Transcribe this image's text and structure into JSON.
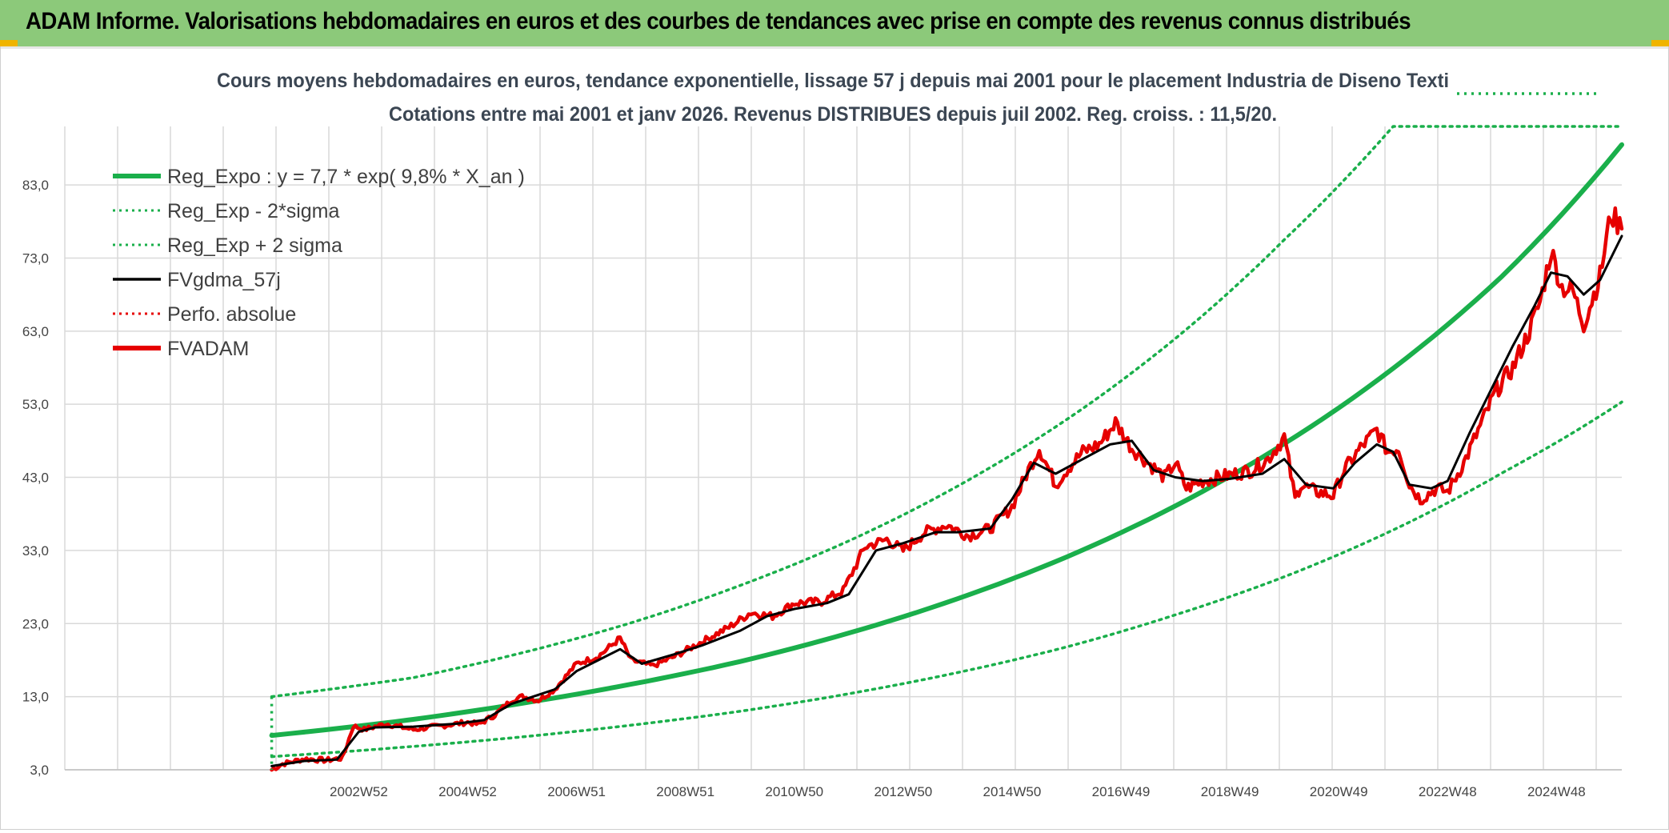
{
  "header": {
    "title": "ADAM Informe. Valorisations hebdomadaires en euros et des courbes de tendances avec prise en compte des revenus connus distribués"
  },
  "colors": {
    "header_bg": "#8cc97a",
    "reg_expo": "#1aaf4b",
    "sigma": "#1aaf4b",
    "fvgdma": "#000000",
    "perfo": "#e60000",
    "fvadam": "#e60000",
    "grid": "#d9d9d9"
  },
  "chart_data": {
    "type": "line",
    "title": "Cours moyens hebdomadaires en euros, tendance exponentielle, lissage 57 j depuis mai 2001 pour le placement Industria de Diseno Texti",
    "subtitle": "Cotations entre mai 2001 et janv 2026. Revenus DISTRIBUES depuis juil 2002. Reg. croiss. : 11,5/20.",
    "xlabel": "",
    "ylabel": "",
    "xlim": [
      1997.6,
      2026.2
    ],
    "ylim": [
      3,
      91
    ],
    "y_ticks": [
      "3,0",
      "13,0",
      "23,0",
      "33,0",
      "43,0",
      "53,0",
      "63,0",
      "73,0",
      "83,0"
    ],
    "y_tick_values": [
      3,
      13,
      23,
      33,
      43,
      53,
      63,
      73,
      83
    ],
    "x_ticks": [
      "2002W52",
      "2004W52",
      "2006W51",
      "2008W51",
      "2010W50",
      "2012W50",
      "2014W50",
      "2016W49",
      "2018W49",
      "2020W49",
      "2022W48",
      "2024W48"
    ],
    "x_tick_values": [
      2003.0,
      2005.0,
      2007.0,
      2009.0,
      2011.0,
      2013.0,
      2015.0,
      2017.0,
      2019.0,
      2021.0,
      2023.0,
      2025.0
    ],
    "legend": [
      {
        "key": "reg_expo",
        "label": "Reg_Expo : y = 7,7 * exp( 9,8% *  X_an )",
        "style": "solid-thick",
        "color": "#1aaf4b"
      },
      {
        "key": "reg_minus",
        "label": "Reg_Exp - 2*sigma",
        "style": "dotted",
        "color": "#1aaf4b"
      },
      {
        "key": "reg_plus",
        "label": "Reg_Exp + 2 sigma",
        "style": "dotted",
        "color": "#1aaf4b"
      },
      {
        "key": "fvgdma",
        "label": "FVgdma_57j",
        "style": "solid",
        "color": "#000000"
      },
      {
        "key": "perfo",
        "label": "Perfo. absolue",
        "style": "dotted",
        "color": "#e60000"
      },
      {
        "key": "fvadam",
        "label": "FVADAM",
        "style": "solid-thick",
        "color": "#e60000"
      }
    ],
    "series": [
      {
        "name": "Reg_Expo",
        "x": [
          2001.4,
          2004,
          2006,
          2008,
          2010,
          2012,
          2014,
          2016,
          2018,
          2020,
          2022,
          2024,
          2026.2
        ],
        "values": [
          7.7,
          9.9,
          12.1,
          14.7,
          17.8,
          21.7,
          26.4,
          32.1,
          39.1,
          47.6,
          57.9,
          70.5,
          88.5
        ]
      },
      {
        "name": "Reg_Exp - 2*sigma",
        "x": [
          2001.4,
          2004,
          2006,
          2008,
          2010,
          2012,
          2014,
          2016,
          2018,
          2020,
          2022,
          2024,
          2026.2
        ],
        "values": [
          4.8,
          6.2,
          7.5,
          9.1,
          11.0,
          13.4,
          16.3,
          19.8,
          24.2,
          29.4,
          35.8,
          43.6,
          53.3
        ]
      },
      {
        "name": "Reg_Exp + 2 sigma",
        "x": [
          2001.4,
          2004,
          2006,
          2008,
          2010,
          2012,
          2014,
          2016,
          2018,
          2020,
          2022,
          2024,
          2026.2
        ],
        "values": [
          13.0,
          15.6,
          19.0,
          23.1,
          28.2,
          34.3,
          41.8,
          50.9,
          62.0,
          75.5,
          91.0,
          91.0,
          91.0
        ]
      },
      {
        "name": "FVgdma_57j",
        "x": [
          2001.4,
          2002.0,
          2002.6,
          2003.0,
          2003.3,
          2004.0,
          2004.8,
          2005.3,
          2005.8,
          2006.2,
          2006.6,
          2007.0,
          2007.4,
          2007.8,
          2008.2,
          2008.8,
          2009.3,
          2010.0,
          2010.5,
          2011.0,
          2011.6,
          2012.0,
          2012.5,
          2013.0,
          2013.6,
          2014.0,
          2014.6,
          2015.0,
          2015.4,
          2015.8,
          2016.3,
          2016.8,
          2017.2,
          2017.6,
          2018.0,
          2018.5,
          2019.0,
          2019.6,
          2020.0,
          2020.4,
          2020.9,
          2021.3,
          2021.7,
          2022.0,
          2022.3,
          2022.7,
          2023.0,
          2023.4,
          2023.8,
          2024.2,
          2024.6,
          2024.9,
          2025.2,
          2025.5,
          2025.8,
          2026.2
        ],
        "values": [
          3.5,
          4.2,
          4.4,
          8.2,
          8.8,
          8.9,
          9.3,
          9.8,
          12.0,
          13.0,
          14.0,
          16.5,
          18.0,
          19.5,
          17.5,
          18.8,
          20.0,
          22.0,
          24.0,
          25.0,
          25.8,
          27.0,
          33.0,
          34.0,
          35.5,
          35.5,
          36.0,
          40.0,
          45.0,
          43.5,
          45.5,
          47.5,
          48.0,
          44.0,
          43.0,
          42.5,
          42.8,
          43.5,
          45.5,
          42.0,
          41.5,
          45.0,
          47.5,
          46.5,
          42.0,
          41.5,
          42.5,
          49.0,
          55.0,
          61.0,
          66.5,
          71.0,
          70.5,
          68.0,
          70.0,
          76.0
        ]
      },
      {
        "name": "FVADAM",
        "x": [
          2001.4,
          2001.6,
          2002.0,
          2002.4,
          2002.7,
          2002.9,
          2003.1,
          2003.5,
          2004.0,
          2004.5,
          2005.0,
          2005.2,
          2005.5,
          2005.8,
          2006.0,
          2006.3,
          2006.6,
          2007.0,
          2007.4,
          2007.8,
          2008.0,
          2008.4,
          2008.8,
          2009.3,
          2009.8,
          2010.2,
          2010.6,
          2011.0,
          2011.5,
          2011.9,
          2012.3,
          2012.7,
          2013.0,
          2013.4,
          2013.8,
          2014.2,
          2014.6,
          2015.0,
          2015.3,
          2015.5,
          2015.8,
          2016.0,
          2016.3,
          2016.6,
          2016.9,
          2017.2,
          2017.5,
          2017.8,
          2018.0,
          2018.2,
          2018.5,
          2018.8,
          2019.1,
          2019.4,
          2019.7,
          2020.0,
          2020.2,
          2020.3,
          2020.6,
          2020.9,
          2021.1,
          2021.4,
          2021.7,
          2021.9,
          2022.1,
          2022.3,
          2022.5,
          2022.8,
          2023.0,
          2023.3,
          2023.6,
          2023.9,
          2024.2,
          2024.5,
          2024.7,
          2024.9,
          2025.1,
          2025.3,
          2025.5,
          2025.8,
          2026.0,
          2026.2
        ],
        "values": [
          3.0,
          3.8,
          4.5,
          4.3,
          4.6,
          9.0,
          8.5,
          9.3,
          8.5,
          9.0,
          9.5,
          9.2,
          10.5,
          12.5,
          13.0,
          12.5,
          14.0,
          17.5,
          18.5,
          21.0,
          18.0,
          17.2,
          18.5,
          20.5,
          22.5,
          24.5,
          24.0,
          25.8,
          26.0,
          27.5,
          33.5,
          34.5,
          33.0,
          35.5,
          36.5,
          35.0,
          36.0,
          39.0,
          44.0,
          47.0,
          42.0,
          44.0,
          46.5,
          47.5,
          50.5,
          47.0,
          45.0,
          43.0,
          45.0,
          41.5,
          42.5,
          43.0,
          43.5,
          44.0,
          45.5,
          48.5,
          40.0,
          42.0,
          41.0,
          40.5,
          44.0,
          47.0,
          49.5,
          46.5,
          47.0,
          42.0,
          40.0,
          41.5,
          41.0,
          45.0,
          50.0,
          55.0,
          58.0,
          63.0,
          67.0,
          74.0,
          69.0,
          68.5,
          64.0,
          70.5,
          79.0,
          77.0
        ]
      }
    ]
  }
}
